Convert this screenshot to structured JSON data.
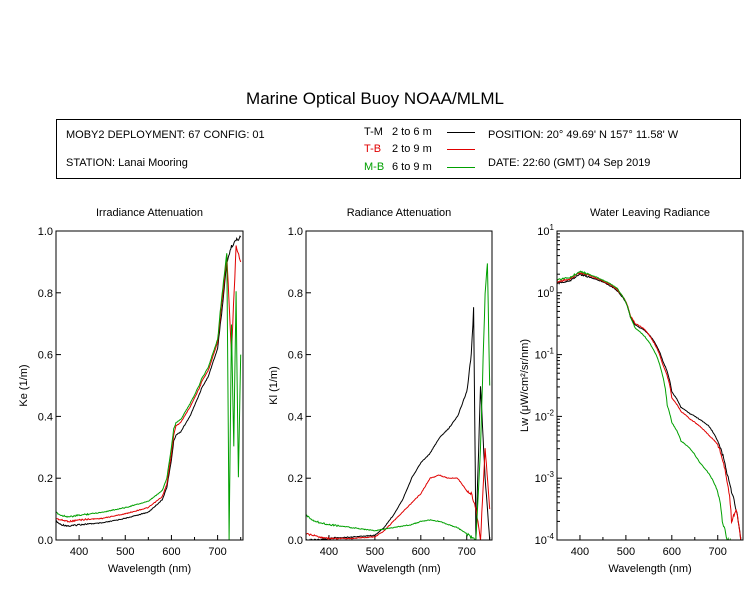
{
  "title": "Marine Optical Buoy NOAA/MLML",
  "info": {
    "deployment": "MOBY2 DEPLOYMENT: 67 CONFIG: 01",
    "station": "STATION: Lanai Mooring",
    "position": "POSITION: 20° 49.69' N   157° 11.58' W",
    "date": "DATE: 22:60 (GMT) 04 Sep 2019",
    "legend": [
      {
        "code": "T-M",
        "range": "2 to 6  m",
        "color": "#000000"
      },
      {
        "code": "T-B",
        "range": "2 to 9  m",
        "color": "#e00000"
      },
      {
        "code": "M-B",
        "range": "6 to 9  m",
        "color": "#00a000"
      }
    ]
  },
  "colors": {
    "T-M": "#000000",
    "T-B": "#e00000",
    "M-B": "#00a000"
  },
  "chart_data": [
    {
      "type": "line",
      "title": "Irradiance Attenuation",
      "xlabel": "Wavelength (nm)",
      "ylabel": "Ke  (1/m)",
      "xlim": [
        350,
        755
      ],
      "ylim": [
        0,
        1
      ],
      "xticks": [
        400,
        500,
        600,
        700
      ],
      "yticks": [
        0.0,
        0.2,
        0.4,
        0.6,
        0.8,
        1.0
      ],
      "ytick_labels": [
        "0.0",
        "0.2",
        "0.4",
        "0.6",
        "0.8",
        "1.0"
      ],
      "series": [
        {
          "name": "T-M",
          "x": [
            350,
            360,
            380,
            400,
            450,
            500,
            550,
            580,
            590,
            600,
            605,
            610,
            620,
            640,
            660,
            665,
            680,
            700,
            710,
            720,
            730,
            740,
            750
          ],
          "y": [
            0.06,
            0.05,
            0.045,
            0.05,
            0.055,
            0.07,
            0.09,
            0.13,
            0.17,
            0.26,
            0.32,
            0.34,
            0.35,
            0.4,
            0.47,
            0.49,
            0.53,
            0.62,
            0.75,
            0.9,
            0.95,
            0.97,
            0.98
          ]
        },
        {
          "name": "T-B",
          "x": [
            350,
            360,
            380,
            400,
            450,
            500,
            550,
            580,
            590,
            600,
            605,
            610,
            620,
            640,
            660,
            665,
            680,
            700,
            710,
            720,
            730,
            740,
            750
          ],
          "y": [
            0.07,
            0.065,
            0.06,
            0.065,
            0.07,
            0.085,
            0.105,
            0.14,
            0.18,
            0.28,
            0.34,
            0.37,
            0.38,
            0.43,
            0.49,
            0.51,
            0.55,
            0.64,
            0.78,
            0.92,
            0.6,
            0.95,
            0.9
          ]
        },
        {
          "name": "M-B",
          "x": [
            350,
            360,
            380,
            400,
            450,
            500,
            550,
            580,
            590,
            600,
            605,
            610,
            620,
            640,
            660,
            665,
            680,
            700,
            710,
            720,
            725,
            730,
            735,
            740,
            745,
            750
          ],
          "y": [
            0.09,
            0.08,
            0.075,
            0.08,
            0.09,
            0.105,
            0.125,
            0.16,
            0.2,
            0.3,
            0.36,
            0.38,
            0.39,
            0.44,
            0.5,
            0.52,
            0.56,
            0.65,
            0.8,
            0.93,
            0.0,
            0.7,
            0.3,
            0.8,
            0.2,
            0.6
          ]
        }
      ]
    },
    {
      "type": "line",
      "title": "Radiance Attenuation",
      "xlabel": "Wavelength (nm)",
      "ylabel": "Kl  (1/m)",
      "xlim": [
        350,
        755
      ],
      "ylim": [
        0,
        1
      ],
      "xticks": [
        400,
        500,
        600,
        700
      ],
      "yticks": [
        0.0,
        0.2,
        0.4,
        0.6,
        0.8,
        1.0
      ],
      "ytick_labels": [
        "0.0",
        "0.2",
        "0.4",
        "0.6",
        "0.8",
        "1.0"
      ],
      "series": [
        {
          "name": "T-M",
          "x": [
            350,
            380,
            400,
            450,
            500,
            520,
            540,
            560,
            580,
            600,
            620,
            640,
            660,
            680,
            700,
            710,
            715,
            720,
            730,
            740,
            750
          ],
          "y": [
            0.0,
            0.0,
            0.005,
            0.01,
            0.015,
            0.04,
            0.08,
            0.13,
            0.2,
            0.25,
            0.28,
            0.33,
            0.36,
            0.4,
            0.48,
            0.6,
            0.75,
            0.0,
            0.5,
            0.2,
            0.0
          ]
        },
        {
          "name": "T-B",
          "x": [
            350,
            380,
            400,
            450,
            500,
            520,
            540,
            560,
            580,
            600,
            620,
            640,
            660,
            680,
            700,
            710,
            720,
            730,
            740,
            750
          ],
          "y": [
            0.02,
            0.01,
            0.005,
            0.005,
            0.01,
            0.03,
            0.06,
            0.09,
            0.12,
            0.15,
            0.2,
            0.21,
            0.2,
            0.2,
            0.16,
            0.15,
            0.1,
            0.0,
            0.3,
            0.1
          ]
        },
        {
          "name": "M-B",
          "x": [
            350,
            370,
            400,
            450,
            500,
            520,
            540,
            560,
            580,
            600,
            620,
            640,
            660,
            680,
            700,
            710,
            720,
            730,
            740,
            745,
            750
          ],
          "y": [
            0.08,
            0.06,
            0.05,
            0.04,
            0.03,
            0.035,
            0.04,
            0.045,
            0.05,
            0.06,
            0.065,
            0.06,
            0.05,
            0.04,
            0.02,
            0.01,
            0.0,
            0.3,
            0.8,
            0.9,
            0.5
          ]
        }
      ]
    },
    {
      "type": "line",
      "title": "Water Leaving Radiance",
      "xlabel": "Wavelength (nm)",
      "ylabel": "Lw  (μW/cm²/sr/nm)",
      "xlim": [
        350,
        755
      ],
      "ylim": [
        0.0001,
        10
      ],
      "yscale": "log",
      "xticks": [
        400,
        500,
        600,
        700
      ],
      "yticks": [
        0.0001,
        0.001,
        0.01,
        0.1,
        1,
        10
      ],
      "ytick_labels": [
        {
          "base": "10",
          "exp": "-4"
        },
        {
          "base": "10",
          "exp": "-3"
        },
        {
          "base": "10",
          "exp": "-2"
        },
        {
          "base": "10",
          "exp": "-1"
        },
        {
          "base": "10",
          "exp": "0"
        },
        {
          "base": "10",
          "exp": "1"
        }
      ],
      "series": [
        {
          "name": "T-M",
          "x": [
            350,
            380,
            400,
            420,
            450,
            480,
            500,
            510,
            520,
            540,
            560,
            580,
            600,
            620,
            640,
            660,
            680,
            700,
            710,
            720,
            730,
            740,
            750
          ],
          "y": [
            1.4,
            1.6,
            2.0,
            1.8,
            1.5,
            1.1,
            0.7,
            0.4,
            0.3,
            0.25,
            0.17,
            0.08,
            0.025,
            0.014,
            0.011,
            0.009,
            0.007,
            0.004,
            0.0025,
            0.0012,
            0.0006,
            0.0003,
            0.0001
          ]
        },
        {
          "name": "T-B",
          "x": [
            350,
            380,
            400,
            420,
            450,
            480,
            500,
            510,
            520,
            540,
            560,
            580,
            600,
            620,
            640,
            660,
            680,
            700,
            710,
            720,
            730,
            740,
            750
          ],
          "y": [
            1.5,
            1.7,
            2.1,
            1.9,
            1.55,
            1.15,
            0.72,
            0.42,
            0.32,
            0.26,
            0.16,
            0.07,
            0.02,
            0.012,
            0.009,
            0.007,
            0.005,
            0.0035,
            0.002,
            0.0009,
            0.0002,
            0.0003,
            0.0001
          ]
        },
        {
          "name": "M-B",
          "x": [
            350,
            380,
            400,
            420,
            450,
            480,
            500,
            510,
            520,
            540,
            560,
            580,
            590,
            600,
            620,
            640,
            660,
            680,
            700,
            710,
            720,
            730
          ],
          "y": [
            1.6,
            1.8,
            2.2,
            2.0,
            1.6,
            1.2,
            0.7,
            0.4,
            0.27,
            0.2,
            0.12,
            0.045,
            0.015,
            0.008,
            0.004,
            0.003,
            0.0018,
            0.0012,
            0.0006,
            0.0002,
            0.0001,
            0.0001
          ]
        }
      ]
    }
  ]
}
